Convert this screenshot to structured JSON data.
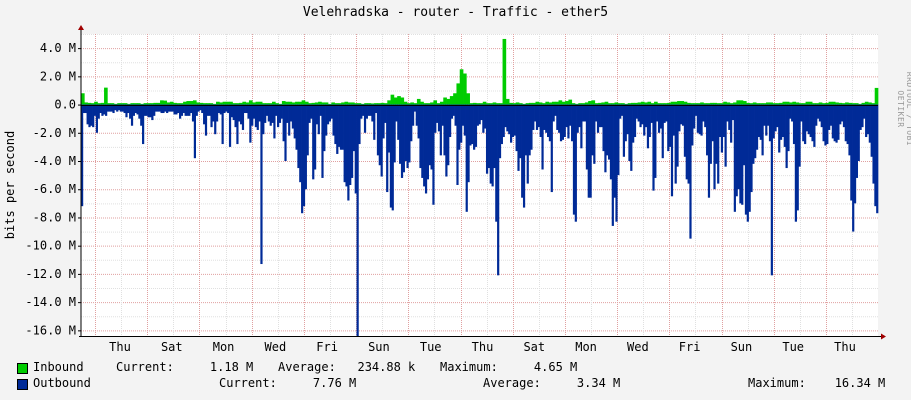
{
  "title": "Velehradska - router - Traffic - ether5",
  "watermark": "RRDTOOL / TOBI OETIKER",
  "colors": {
    "background": "#f3f3f3",
    "canvas": "#ffffff",
    "inbound": "#00cc00",
    "outbound": "#002a97",
    "grid_minor": "#e0e0e0",
    "grid_major": "#e0a0a0",
    "axis": "#000000",
    "arrow": "#a00000"
  },
  "chart_data": {
    "type": "area",
    "title": "Velehradska - router - Traffic - ether5",
    "ylabel": "bits per second",
    "ylim": [
      -16.4,
      5.0
    ],
    "y_ticks": [
      {
        "v": 4,
        "label": "4.0 M"
      },
      {
        "v": 2,
        "label": "2.0 M"
      },
      {
        "v": 0,
        "label": "0.0"
      },
      {
        "v": -2,
        "label": "-2.0 M"
      },
      {
        "v": -4,
        "label": "-4.0 M"
      },
      {
        "v": -6,
        "label": "-6.0 M"
      },
      {
        "v": -8,
        "label": "-8.0 M"
      },
      {
        "v": -10,
        "label": "-10.0 M"
      },
      {
        "v": -12,
        "label": "-12.0 M"
      },
      {
        "v": -14,
        "label": "-14.0 M"
      },
      {
        "v": -16,
        "label": "-16.0 M"
      }
    ],
    "x_ticks": [
      "Thu",
      "Sat",
      "Mon",
      "Wed",
      "Fri",
      "Sun",
      "Tue",
      "Thu",
      "Sat",
      "Mon",
      "Wed",
      "Fri",
      "Sun",
      "Tue",
      "Thu"
    ],
    "series": [
      {
        "name": "Inbound",
        "values": [
          0.8,
          0.15,
          0.12,
          0.1,
          0.2,
          0.1,
          0.12,
          1.2,
          0.1,
          0.1,
          0.05,
          0.1,
          0.1,
          0.1,
          0.05,
          0.1,
          0.1,
          0.1,
          0.05,
          0.1,
          0.1,
          0.1,
          0.12,
          0.12,
          0.3,
          0.28,
          0.15,
          0.2,
          0.12,
          0.1,
          0.1,
          0.2,
          0.25,
          0.25,
          0.3,
          0.15,
          0.12,
          0.1,
          0.1,
          0.1,
          0.05,
          0.2,
          0.15,
          0.2,
          0.2,
          0.2,
          0.1,
          0.1,
          0.12,
          0.2,
          0.15,
          0.3,
          0.15,
          0.2,
          0.2,
          0.1,
          0.1,
          0.1,
          0.2,
          0.1,
          0.05,
          0.25,
          0.2,
          0.2,
          0.15,
          0.2,
          0.2,
          0.3,
          0.2,
          0.1,
          0.12,
          0.15,
          0.2,
          0.15,
          0.15,
          0.05,
          0.15,
          0.1,
          0.1,
          0.15,
          0.2,
          0.15,
          0.15,
          0.1,
          0.1,
          0.05,
          0.1,
          0.1,
          0.08,
          0.1,
          0.1,
          0.12,
          0.1,
          0.3,
          0.7,
          0.5,
          0.6,
          0.5,
          0.2,
          0.1,
          0.15,
          0.1,
          0.4,
          0.2,
          0.1,
          0.1,
          0.15,
          0.3,
          0.1,
          0.2,
          0.5,
          0.4,
          0.6,
          0.8,
          1.5,
          2.5,
          2.2,
          0.8,
          0.1,
          0.12,
          0.1,
          0.1,
          0.2,
          0.1,
          0.1,
          0.15,
          0.1,
          0.1,
          4.65,
          0.4,
          0.12,
          0.1,
          0.15,
          0.1,
          0.05,
          0.1,
          0.12,
          0.12,
          0.2,
          0.15,
          0.1,
          0.2,
          0.15,
          0.2,
          0.2,
          0.3,
          0.2,
          0.25,
          0.35,
          0.1,
          0.05,
          0.1,
          0.1,
          0.15,
          0.25,
          0.3,
          0.1,
          0.12,
          0.15,
          0.2,
          0.1,
          0.1,
          0.15,
          0.1,
          0.1,
          0.05,
          0.1,
          0.12,
          0.12,
          0.15,
          0.2,
          0.15,
          0.2,
          0.1,
          0.2,
          0.1,
          0.1,
          0.1,
          0.12,
          0.2,
          0.2,
          0.25,
          0.25,
          0.2,
          0.12,
          0.1,
          0.1,
          0.1,
          0.15,
          0.1,
          0.1,
          0.12,
          0.12,
          0.1,
          0.1,
          0.2,
          0.15,
          0.1,
          0.15,
          0.3,
          0.3,
          0.25,
          0.12,
          0.1,
          0.15,
          0.1,
          0.1,
          0.1,
          0.15,
          0.15,
          0.1,
          0.1,
          0.12,
          0.2,
          0.2,
          0.15,
          0.2,
          0.15,
          0.1,
          0.1,
          0.2,
          0.2,
          0.1,
          0.1,
          0.15,
          0.1,
          0.12,
          0.2,
          0.2,
          0.15,
          0.12,
          0.1,
          0.15,
          0.12,
          0.1,
          0.1,
          0.05,
          0.12,
          0.2,
          0.15,
          0.1,
          1.18
        ]
      },
      {
        "name": "Outbound",
        "values": [
          -7.2,
          -0.6,
          -0.6,
          -1.4,
          -1.6,
          -1.5,
          -1.6,
          -0.8,
          -2.0,
          -1.0,
          -0.6,
          -0.8,
          -0.7,
          -0.8,
          -0.5,
          -0.5,
          -0.5,
          -0.6,
          -0.4,
          -0.5,
          -0.4,
          -0.5,
          -0.5,
          -0.6,
          -0.9,
          -0.6,
          -1.0,
          -1.5,
          -0.8,
          -0.6,
          -0.7,
          -1.0,
          -1.5,
          -2.8,
          -0.8,
          -0.8,
          -0.9,
          -0.9,
          -1.1,
          -0.8,
          -0.5,
          -0.5,
          -0.5,
          -0.6,
          -0.6,
          -0.5,
          -0.6,
          -0.5,
          -0.5,
          -0.5,
          -0.7,
          -0.7,
          -0.6,
          -1.0,
          -0.8,
          -0.6,
          -0.8,
          -0.8,
          -0.8,
          -0.6,
          -1.2,
          -3.8,
          -0.8,
          -0.5,
          -0.4,
          -0.6,
          -1.4,
          -2.2,
          -0.8,
          -0.8,
          -1.6,
          -1.2,
          -2.1,
          -1.2,
          -0.6,
          -0.7,
          -2.8,
          -0.6,
          -0.5,
          -0.6,
          -3.0,
          -0.9,
          -1.1,
          -1.6,
          -2.8,
          -1.2,
          -1.4,
          -1.8,
          -0.6,
          -0.6,
          -1.0,
          -2.7,
          -1.5,
          -1.0,
          -1.6,
          -1.8,
          -1.2,
          -11.3,
          -2.1,
          -1.3,
          -0.8,
          -1.2,
          -1.5,
          -1.3,
          -2.4,
          -0.8,
          -1.6,
          -1.3,
          -1.0,
          -2.6,
          -4.0,
          -1.3,
          -2.2,
          -1.2,
          -1.7,
          -2.4,
          -3.2,
          -4.5,
          -5.5,
          -7.7,
          -7.2,
          -6.0,
          -3.6,
          -1.3,
          -1.0,
          -5.3,
          -4.6,
          -1.4,
          -2.1,
          -0.8,
          -5.2,
          -3.3,
          -2.2,
          -1.4,
          -1.2,
          -1.0,
          -2.2,
          -2.8,
          -3.5,
          -3.0,
          -3.2,
          -3.2,
          -5.5,
          -5.8,
          -6.8,
          -5.7,
          -5.2,
          -3.3,
          -6.3,
          -16.4,
          -2.8,
          -1.0,
          -0.8,
          -2.0,
          -1.0,
          -0.8,
          -0.8,
          -1.2,
          -2.5,
          -0.6,
          -3.6,
          -4.3,
          -5.1,
          -2.4,
          -1.3,
          -6.2,
          -3.4,
          -7.3,
          -7.5,
          -4.1,
          -1.2,
          -2.5,
          -4.2,
          -5.2,
          -4.8,
          -4.0,
          -4.5,
          -4.1,
          -2.6,
          -1.5,
          -0.5,
          -1.5,
          -2.4,
          -4.5,
          -5.2,
          -5.8,
          -6.3,
          -5.3,
          -4.3,
          -4.6,
          -7.1,
          -2.0,
          -1.3,
          -1.9,
          -3.6,
          -1.5,
          -3.6,
          -5.1,
          -4.3,
          -2.3,
          -1.0,
          -0.8,
          -1.5,
          -5.7,
          -3.2,
          -2.7,
          -1.5,
          -2.2,
          -7.6,
          -5.5,
          -2.9,
          -2.8,
          -3.2,
          -3.0,
          -1.5,
          -1.4,
          -1.1,
          -2.0,
          -1.7,
          -4.9,
          -4.5,
          -5.6,
          -5.8,
          -4.5,
          -8.3,
          -12.1,
          -3.8,
          -2.8,
          -2.3,
          -1.6,
          -1.9,
          -2.1,
          -2.7,
          -2.3,
          -2.2,
          -3.3,
          -4.7,
          -3.8,
          -6.6,
          -7.3,
          -3.6,
          -5.6,
          -3.6,
          -3.2,
          -1.8,
          -1.2,
          -1.8,
          -1.6,
          -2.3,
          -4.6,
          -1.8,
          -2.0,
          -2.3,
          -2.6,
          -6.2,
          -1.2,
          -0.8,
          -1.8,
          -2.0,
          -2.6,
          -2.5,
          -2.3,
          -1.6,
          -2.4,
          -1.5,
          -2.6,
          -7.8,
          -8.3,
          -2.0,
          -1.6,
          -3.1,
          -1.2,
          -1.2,
          -4.6,
          -6.6,
          -6.6,
          -3.6,
          -4.2,
          -1.2,
          -2.0,
          -1.6,
          -1.6,
          -3.3,
          -4.8,
          -3.6,
          -3.9,
          -5.3,
          -8.6,
          -6.6,
          -8.3,
          -5.0,
          -1.0,
          -0.8,
          -3.7,
          -2.6,
          -2.1,
          -4.0,
          -4.7,
          -2.7,
          -2.3,
          -1.0,
          -1.2,
          -1.6,
          -1.4,
          -2.2,
          -1.6,
          -3.1,
          -2.3,
          -1.3,
          -6.1,
          -5.2,
          -1.2,
          -2.0,
          -1.7,
          -3.8,
          -1.3,
          -1.2,
          -3.3,
          -3.0,
          -6.5,
          -2.2,
          -5.6,
          -4.4,
          -1.9,
          -1.4,
          -1.5,
          -3.7,
          -5.3,
          -5.6,
          -9.5,
          -2.9,
          -1.7,
          -0.8,
          -2.0,
          -2.1,
          -2.2,
          -1.2,
          -1.6,
          -3.6,
          -6.6,
          -4.2,
          -2.6,
          -6.0,
          -4.2,
          -5.6,
          -2.3,
          -3.4,
          -2.3,
          -4.4,
          -1.2,
          -1.8,
          -2.7,
          -1.1,
          -7.6,
          -6.5,
          -6.0,
          -7.0,
          -7.1,
          -4.3,
          -7.8,
          -8.3,
          -7.6,
          -6.2,
          -4.2,
          -3.8,
          -3.2,
          -2.3,
          -2.5,
          -3.6,
          -1.5,
          -2.2,
          -1.5,
          -2.6,
          -12.1,
          -2.4,
          -1.9,
          -1.6,
          -3.4,
          -2.5,
          -2.3,
          -3.0,
          -4.5,
          -3.3,
          -1.0,
          -1.2,
          -2.8,
          -8.3,
          -7.5,
          -4.4,
          -1.2,
          -2.6,
          -2.8,
          -1.9,
          -2.1,
          -2.3,
          -2.6,
          -3.0,
          -1.5,
          -1.0,
          -1.2,
          -1.6,
          -2.6,
          -2.9,
          -2.8,
          -1.8,
          -1.5,
          -2.4,
          -2.6,
          -2.7,
          -2.5,
          -1.4,
          -1.2,
          -1.6,
          -2.6,
          -2.8,
          -3.6,
          -6.8,
          -9.0,
          -7.0,
          -5.2,
          -4.0,
          -1.8,
          -1.6,
          -1.0,
          -2.3,
          -2.1,
          -2.7,
          -3.7,
          -5.6,
          -7.2,
          -7.7
        ]
      }
    ]
  },
  "legend": {
    "inbound": {
      "label": "Inbound",
      "current": "Current:     1.18 M",
      "average": "Average:   234.88 k",
      "maximum": "Maximum:     4.65 M"
    },
    "outbound": {
      "label": "Outbound",
      "current": "Current:     7.76 M",
      "average": "Average:     3.34 M",
      "maximum": "Maximum:    16.34 M"
    }
  }
}
